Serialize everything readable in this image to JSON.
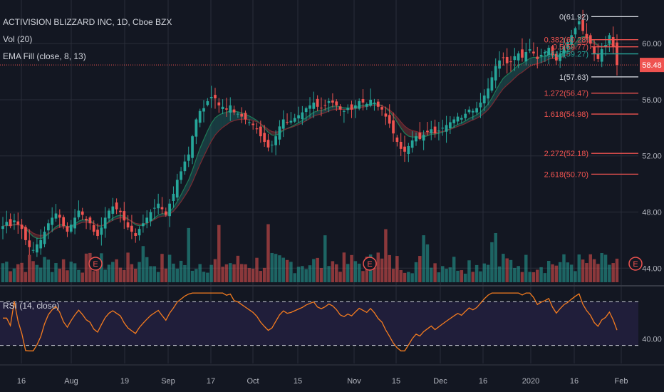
{
  "header": {
    "title": "ACTIVISION BLIZZARD INC, 1D, Cboe BZX",
    "indicators": [
      "Vol (20)",
      "EMA Fill (close, 8, 13)"
    ],
    "rsi_label": "RSI (14, close)"
  },
  "chart_data": {
    "type": "candlestick",
    "instrument": "ACTIVISION BLIZZARD INC",
    "interval": "1D",
    "exchange": "Cboe BZX",
    "last_price": "58.48",
    "price_axis": {
      "ticks": [
        "60.00",
        "56.00",
        "52.00",
        "48.00",
        "44.00"
      ],
      "range": [
        43.0,
        62.7
      ]
    },
    "x_axis": {
      "labels": [
        "16",
        "Aug",
        "19",
        "Sep",
        "17",
        "Oct",
        "15",
        "Nov",
        "15",
        "Dec",
        "16",
        "2020",
        "16",
        "Feb"
      ]
    },
    "fib_levels": [
      {
        "label": "0(61.92)",
        "value": 61.92,
        "color": "#d1d4dc"
      },
      {
        "label": "0.382(60.28)",
        "value": 60.28,
        "color": "#ef5350"
      },
      {
        "label": "0.5(59.77)",
        "value": 59.77,
        "color": "#ef5350"
      },
      {
        "label": "0.618(59.27)",
        "value": 59.27,
        "color": "#26a69a"
      },
      {
        "label": "1(57.63)",
        "value": 57.63,
        "color": "#d1d4dc"
      },
      {
        "label": "1.272(56.47)",
        "value": 56.47,
        "color": "#ef5350"
      },
      {
        "label": "1.618(54.98)",
        "value": 54.98,
        "color": "#ef5350"
      },
      {
        "label": "2.272(52.18)",
        "value": 52.18,
        "color": "#ef5350"
      },
      {
        "label": "2.618(50.70)",
        "value": 50.7,
        "color": "#ef5350"
      }
    ],
    "earnings_markers": [
      "E",
      "E",
      "E"
    ],
    "closes": [
      47.0,
      47.3,
      47.0,
      47.4,
      47.1,
      46.8,
      46.0,
      45.5,
      45.3,
      45.7,
      46.0,
      46.6,
      47.2,
      47.6,
      47.9,
      47.6,
      47.0,
      46.6,
      47.1,
      47.6,
      48.1,
      47.8,
      47.4,
      47.2,
      46.6,
      46.3,
      46.9,
      47.6,
      48.1,
      48.4,
      48.2,
      48.0,
      47.4,
      46.9,
      46.6,
      46.3,
      46.8,
      47.2,
      47.6,
      48.0,
      48.3,
      48.6,
      48.2,
      47.8,
      48.6,
      49.3,
      50.3,
      50.9,
      51.6,
      52.1,
      53.4,
      54.6,
      55.2,
      55.4,
      55.9,
      56.2,
      56.1,
      55.6,
      55.5,
      55.3,
      55.6,
      55.1,
      55.0,
      54.8,
      54.6,
      54.4,
      54.2,
      53.9,
      53.4,
      53.0,
      52.6,
      52.8,
      53.4,
      54.1,
      54.6,
      54.4,
      54.5,
      54.7,
      54.9,
      55.1,
      55.4,
      55.6,
      55.8,
      55.5,
      55.4,
      55.6,
      55.9,
      55.8,
      55.6,
      55.3,
      55.2,
      55.4,
      55.3,
      55.6,
      55.9,
      55.8,
      55.7,
      56.0,
      55.8,
      55.5,
      55.3,
      54.8,
      54.3,
      53.6,
      53.0,
      52.5,
      52.3,
      52.7,
      53.1,
      53.4,
      53.2,
      53.5,
      53.7,
      53.9,
      53.6,
      53.8,
      54.0,
      54.2,
      54.4,
      54.6,
      54.8,
      54.7,
      55.0,
      55.3,
      55.2,
      55.4,
      55.8,
      56.3,
      56.8,
      57.6,
      58.4,
      58.8,
      59.0,
      58.6,
      58.7,
      59.1,
      59.3,
      59.0,
      59.4,
      59.6,
      59.3,
      58.9,
      59.2,
      59.4,
      59.7,
      59.2,
      58.8,
      59.3,
      59.8,
      60.1,
      60.6,
      61.1,
      61.6,
      60.9,
      60.4,
      60.0,
      59.3,
      58.9,
      59.6,
      59.9,
      60.6,
      59.8,
      58.48
    ],
    "rsi": {
      "ticks": [
        "40.00"
      ],
      "range": [
        20,
        80
      ],
      "bands": [
        70,
        30
      ]
    }
  }
}
